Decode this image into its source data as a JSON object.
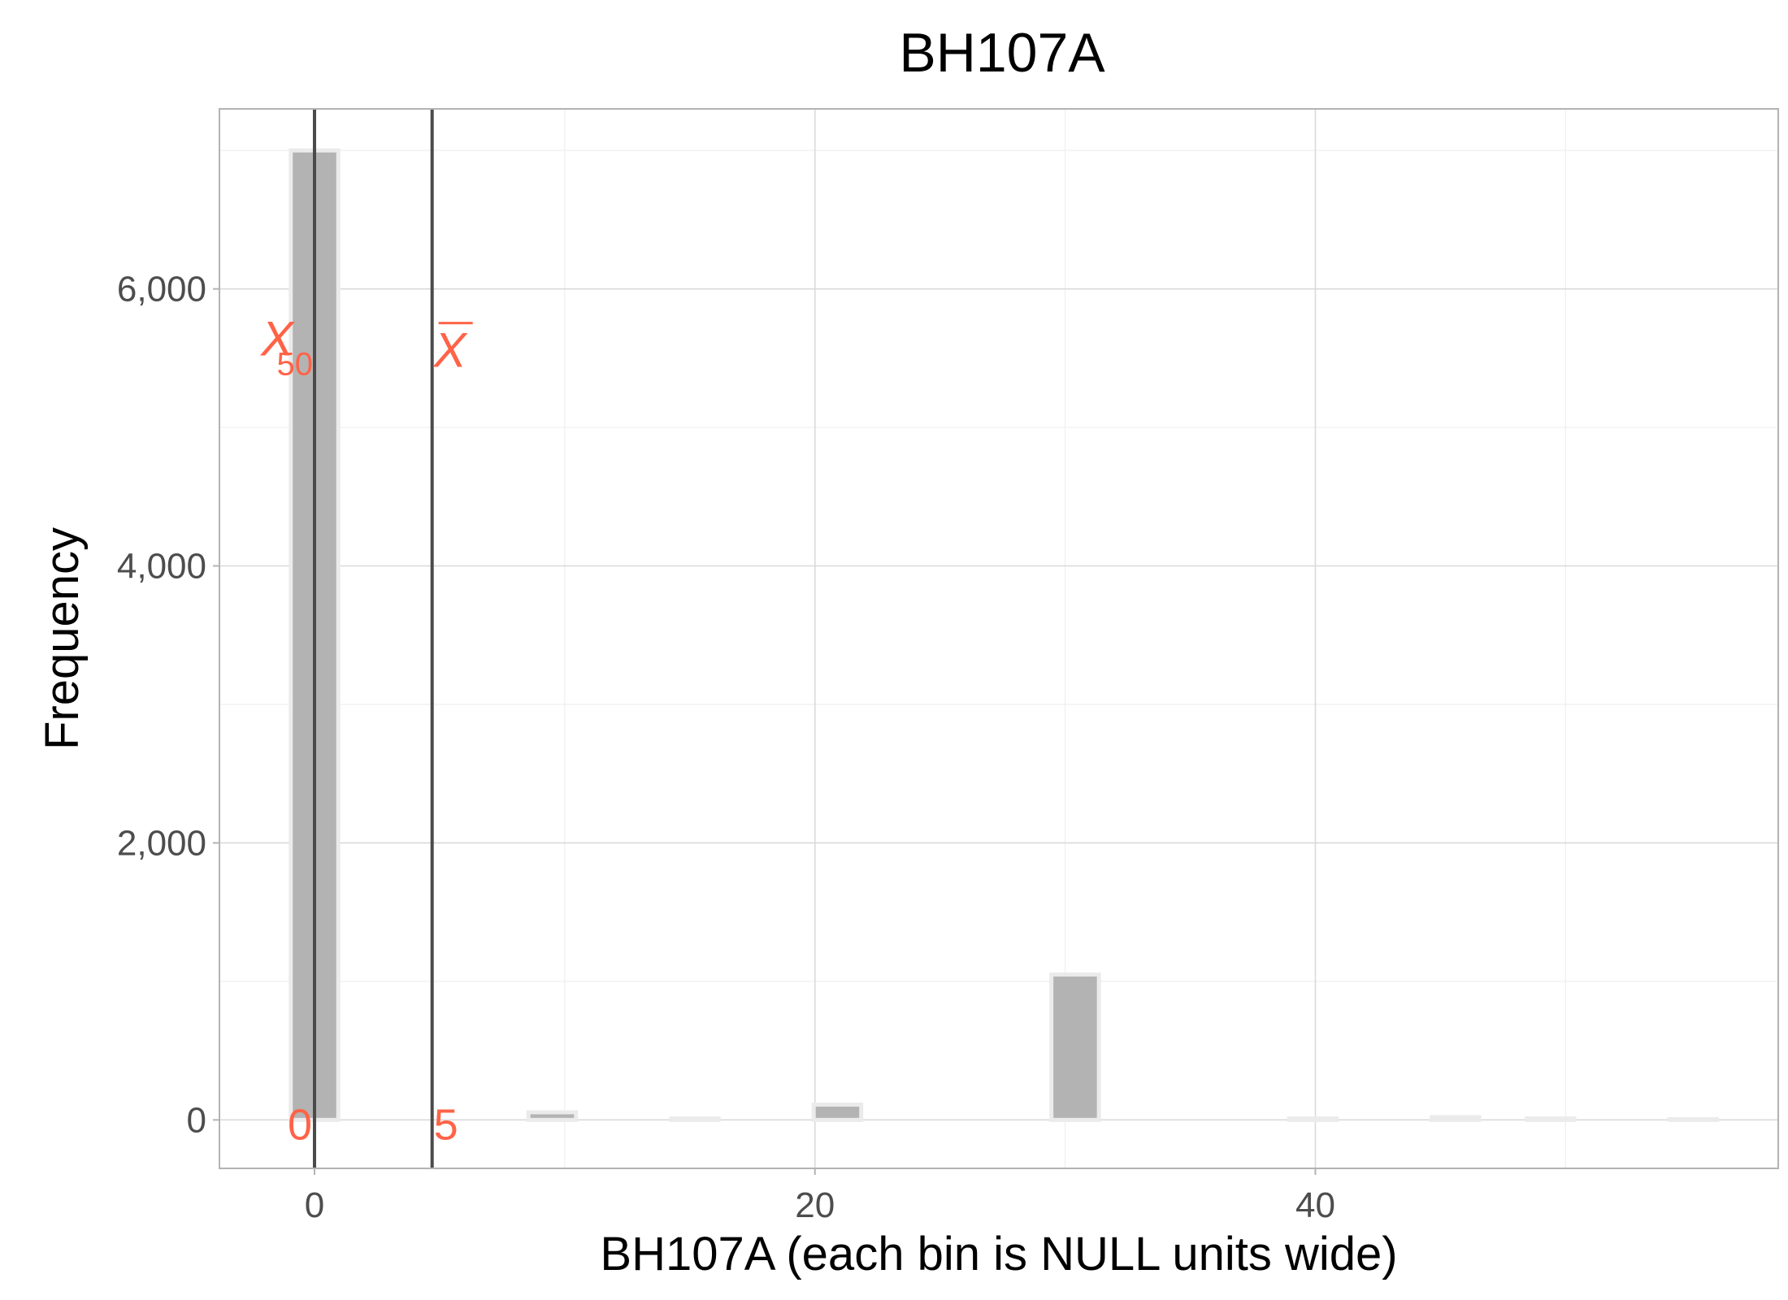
{
  "chart_data": {
    "type": "bar",
    "title": "BH107A",
    "xlabel": "BH107A (each bin is NULL units wide)",
    "ylabel": "Frequency",
    "xlim": [
      -3.8,
      58.5
    ],
    "ylim": [
      -350,
      7300
    ],
    "x_ticks": [
      0,
      20,
      40
    ],
    "x_tick_labels": [
      "0",
      "20",
      "40"
    ],
    "x_minor_ticks": [
      10,
      30,
      50
    ],
    "y_ticks": [
      0,
      2000,
      4000,
      6000
    ],
    "y_tick_labels": [
      "0",
      "2,000",
      "4,000",
      "6,000"
    ],
    "y_minor_ticks": [
      1000,
      3000,
      5000,
      7000
    ],
    "bin_width": 1.9,
    "bins": [
      {
        "x": 0,
        "count": 7000
      },
      {
        "x": 1.9,
        "count": 0
      },
      {
        "x": 3.8,
        "count": 0
      },
      {
        "x": 5.7,
        "count": 0
      },
      {
        "x": 7.6,
        "count": 0
      },
      {
        "x": 9.5,
        "count": 55
      },
      {
        "x": 11.4,
        "count": 0
      },
      {
        "x": 13.3,
        "count": 0
      },
      {
        "x": 15.2,
        "count": 10
      },
      {
        "x": 17.1,
        "count": 0
      },
      {
        "x": 19.0,
        "count": 0
      },
      {
        "x": 20.9,
        "count": 110
      },
      {
        "x": 22.8,
        "count": 0
      },
      {
        "x": 24.7,
        "count": 0
      },
      {
        "x": 26.6,
        "count": 0
      },
      {
        "x": 28.5,
        "count": 0
      },
      {
        "x": 30.4,
        "count": 1050
      },
      {
        "x": 32.3,
        "count": 0
      },
      {
        "x": 34.2,
        "count": 0
      },
      {
        "x": 36.1,
        "count": 0
      },
      {
        "x": 38.0,
        "count": 0
      },
      {
        "x": 39.9,
        "count": 10
      },
      {
        "x": 41.8,
        "count": 0
      },
      {
        "x": 43.7,
        "count": 0
      },
      {
        "x": 45.6,
        "count": 20
      },
      {
        "x": 47.5,
        "count": 0
      },
      {
        "x": 49.4,
        "count": 10
      },
      {
        "x": 51.3,
        "count": 0
      },
      {
        "x": 53.2,
        "count": 0
      },
      {
        "x": 55.1,
        "count": 5
      }
    ],
    "reference_lines": [
      {
        "name": "median",
        "x": 0,
        "symbol": "X",
        "subscript": "50",
        "value_label": "0"
      },
      {
        "name": "mean",
        "x": 4.7,
        "symbol": "X",
        "overline": true,
        "value_label": "5"
      }
    ],
    "colors": {
      "bar_fill": "#b3b3b3",
      "bar_outline": "#ebebeb",
      "annotation": "#ff6347",
      "reference_line": "#4a4a4a"
    }
  }
}
